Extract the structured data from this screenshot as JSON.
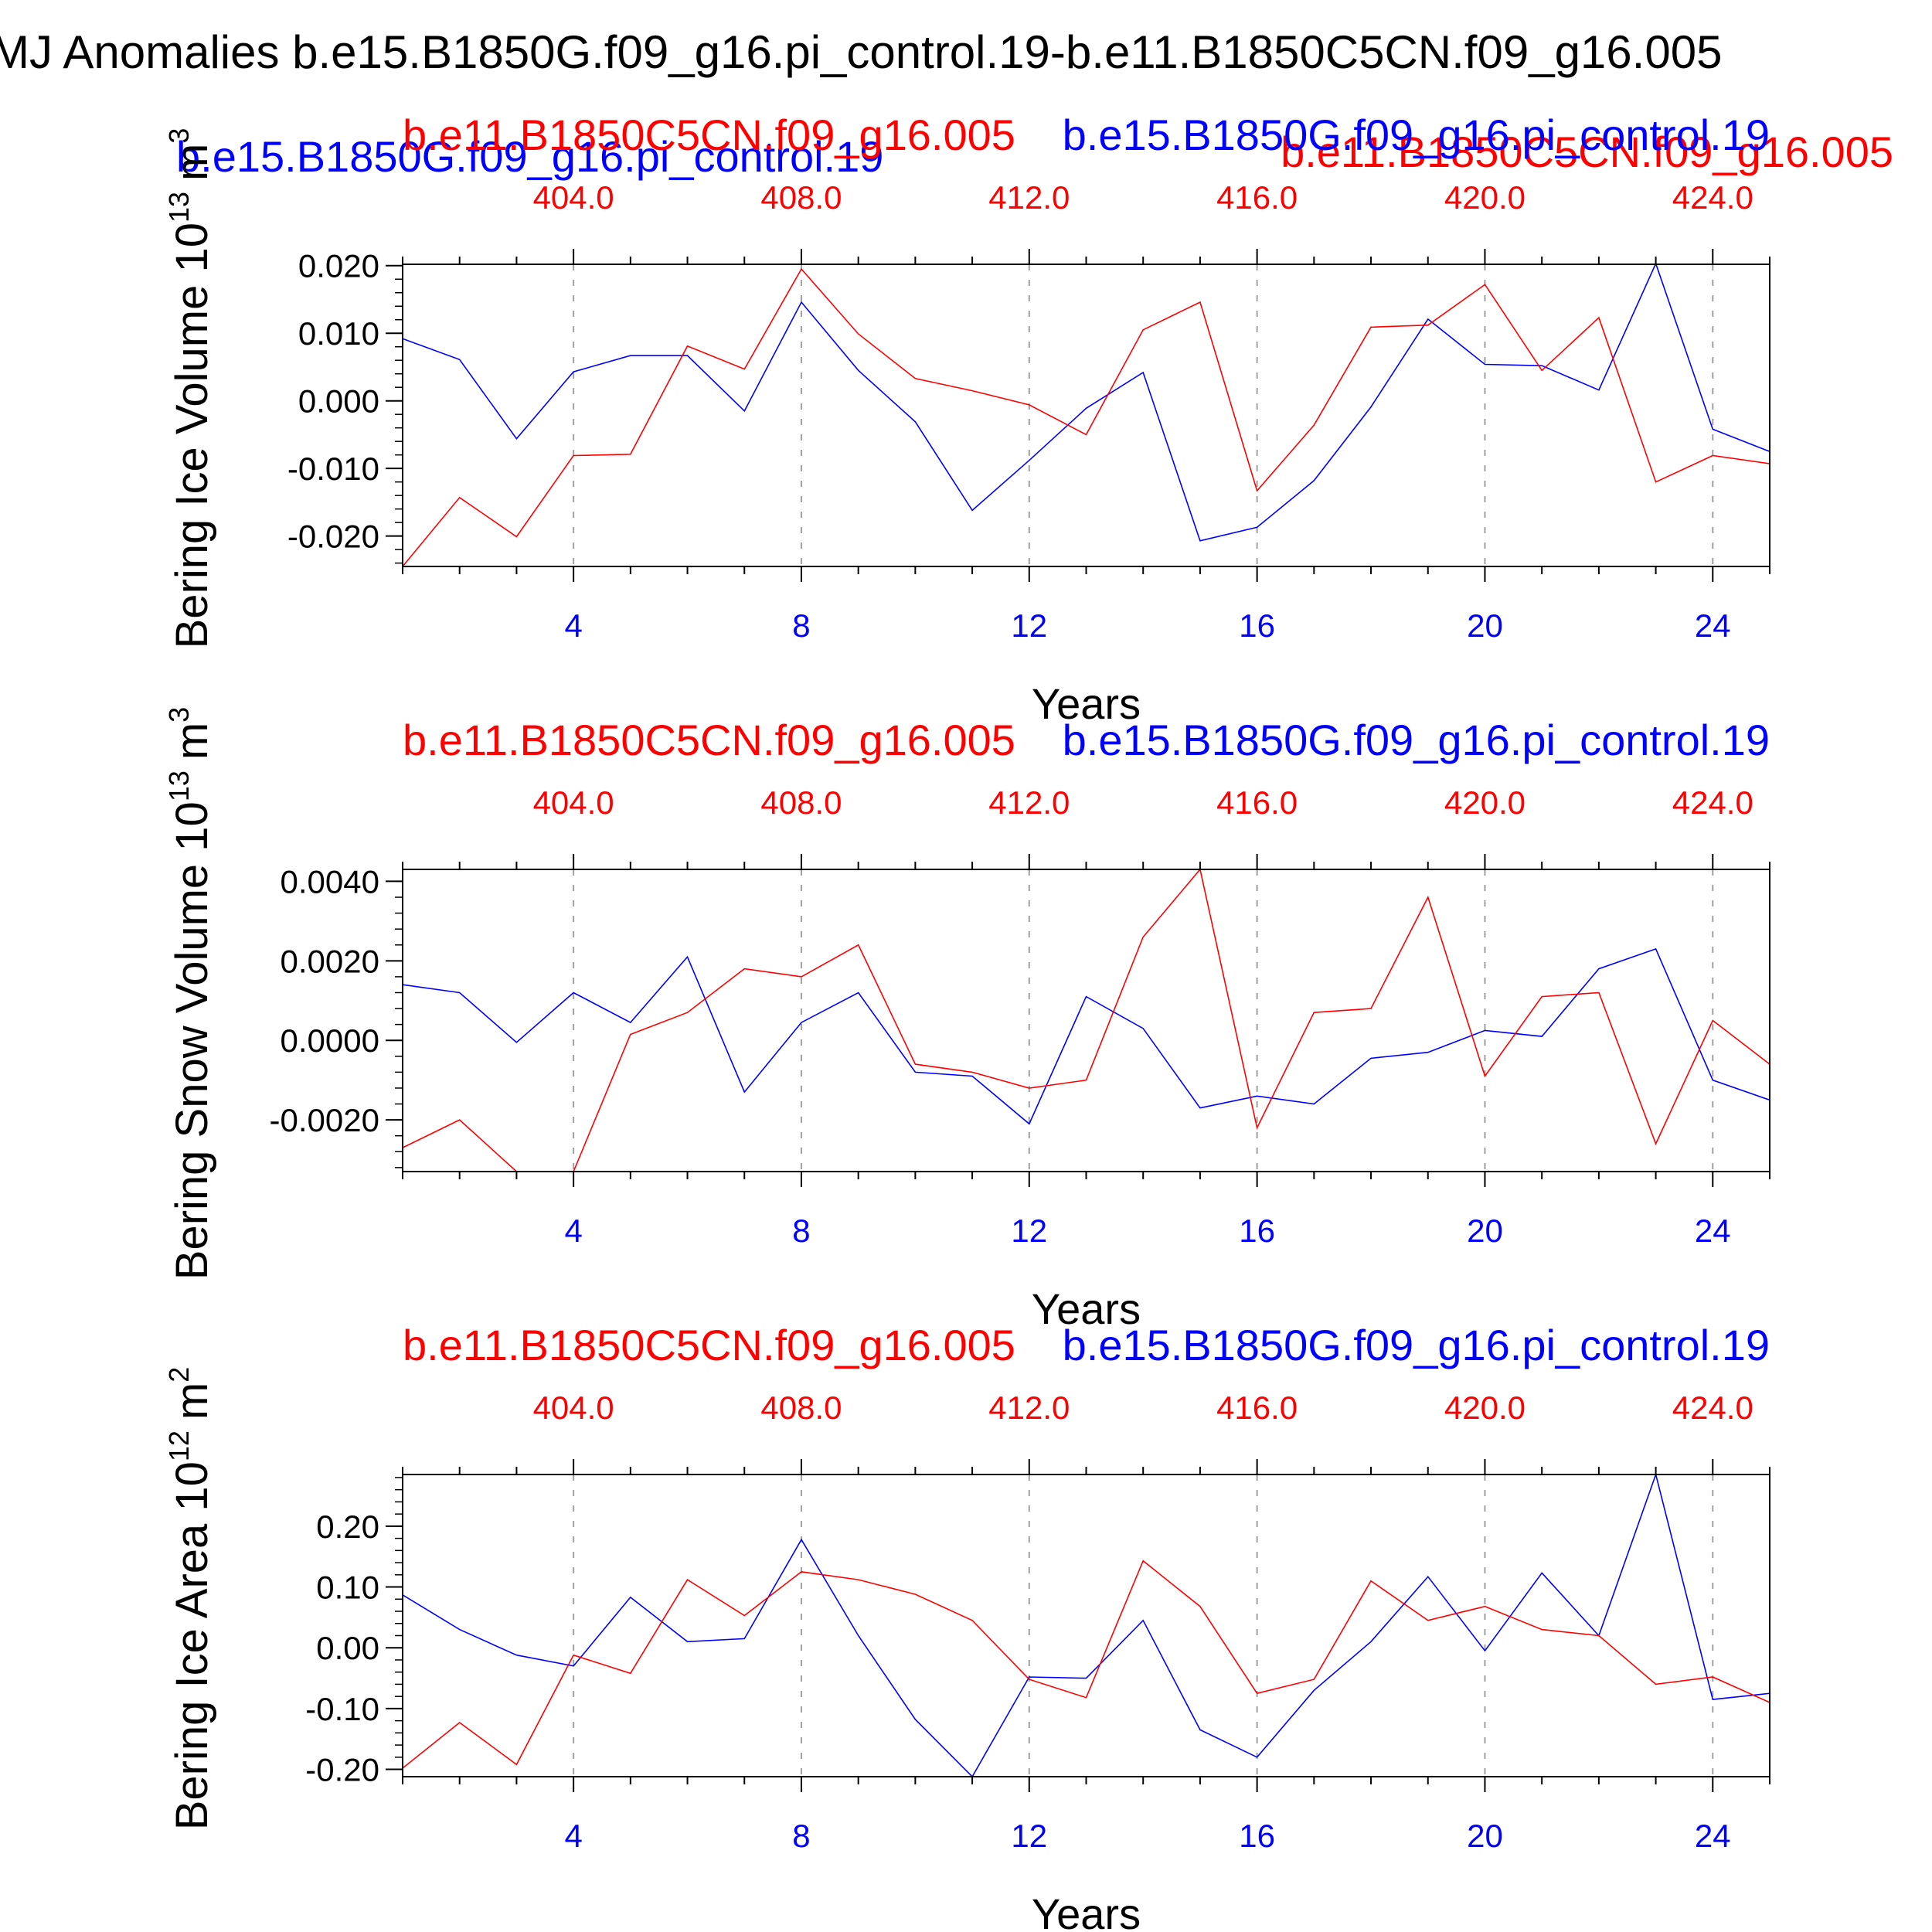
{
  "page_title": "MJ Anomalies b.e15.B1850G.f09_g16.pi_control.19-b.e11.B1850C5CN.f09_g16.005",
  "top_legend": {
    "blue_label": "b.e15.B1850G.f09_g16.pi_control.19",
    "red_label": "b.e11.B1850C5CN.f09_g16.005"
  },
  "colors": {
    "case_a": "#0000ff",
    "case_b": "#ff0000",
    "axis": "#000000",
    "grid": "#a0a0a0"
  },
  "chart_data": [
    {
      "type": "line",
      "name": "ice-volume",
      "ylabel": "Bering Ice Volume 10",
      "ylabel_exp": "13",
      "ylabel_unit": "m",
      "ylabel_unit_exp": "3",
      "xlabel": "Years",
      "ylim": [
        -0.0245,
        0.0202
      ],
      "yticks": [
        -0.02,
        -0.01,
        0.0,
        0.01,
        0.02
      ],
      "ytick_labels": [
        "-0.020",
        "-0.010",
        "0.000",
        "0.010",
        "0.020"
      ],
      "yminor_step": 0.002,
      "xlim": [
        1,
        25
      ],
      "xticks": [
        4,
        8,
        12,
        16,
        20,
        24
      ],
      "xtick_labels": [
        "4",
        "8",
        "12",
        "16",
        "20",
        "24"
      ],
      "top_xtick_labels": [
        "404.0",
        "408.0",
        "412.0",
        "416.0",
        "420.0",
        "424.0"
      ],
      "title_red": "b.e11.B1850C5CN.f09_g16.005",
      "title_blue": "b.e15.B1850G.f09_g16.pi_control.19",
      "x": [
        1,
        2,
        3,
        4,
        5,
        6,
        7,
        8,
        9,
        10,
        11,
        12,
        13,
        14,
        15,
        16,
        17,
        18,
        19,
        20,
        21,
        22,
        23,
        24,
        25
      ],
      "series": [
        {
          "name": "b.e15.B1850G.f09_g16.pi_control.19",
          "color": "#0000ff",
          "values": [
            0.0092,
            0.0061,
            -0.0056,
            0.0043,
            0.0067,
            0.0067,
            -0.0015,
            0.0146,
            0.0045,
            -0.0031,
            -0.0162,
            -0.0088,
            -0.0011,
            0.0042,
            -0.0207,
            -0.0187,
            -0.0118,
            -0.0009,
            0.0121,
            0.0054,
            0.0052,
            0.0016,
            0.0203,
            -0.0042,
            -0.0075
          ]
        },
        {
          "name": "b.e11.B1850C5CN.f09_g16.005",
          "color": "#ff0000",
          "values": [
            -0.0245,
            -0.0143,
            -0.0201,
            -0.0081,
            -0.0079,
            0.0081,
            0.0047,
            0.0195,
            0.0099,
            0.0033,
            0.0015,
            -0.0006,
            -0.005,
            0.0105,
            0.0146,
            -0.0133,
            -0.0036,
            0.0109,
            0.0112,
            0.0172,
            0.0045,
            0.0123,
            -0.012,
            -0.0081,
            -0.0093
          ]
        }
      ]
    },
    {
      "type": "line",
      "name": "snow-volume",
      "ylabel": "Bering Snow Volume 10",
      "ylabel_exp": "13",
      "ylabel_unit": "m",
      "ylabel_unit_exp": "3",
      "xlabel": "Years",
      "ylim": [
        -0.0033,
        0.0043
      ],
      "yticks": [
        -0.002,
        0.0,
        0.002,
        0.004
      ],
      "ytick_labels": [
        "-0.0020",
        "0.0000",
        "0.0020",
        "0.0040"
      ],
      "yminor_step": 0.0004,
      "xlim": [
        1,
        25
      ],
      "xticks": [
        4,
        8,
        12,
        16,
        20,
        24
      ],
      "xtick_labels": [
        "4",
        "8",
        "12",
        "16",
        "20",
        "24"
      ],
      "top_xtick_labels": [
        "404.0",
        "408.0",
        "412.0",
        "416.0",
        "420.0",
        "424.0"
      ],
      "title_red": "b.e11.B1850C5CN.f09_g16.005",
      "title_blue": "b.e15.B1850G.f09_g16.pi_control.19",
      "x": [
        1,
        2,
        3,
        4,
        5,
        6,
        7,
        8,
        9,
        10,
        11,
        12,
        13,
        14,
        15,
        16,
        17,
        18,
        19,
        20,
        21,
        22,
        23,
        24,
        25
      ],
      "series": [
        {
          "name": "b.e15.B1850G.f09_g16.pi_control.19",
          "color": "#0000ff",
          "values": [
            0.0014,
            0.0012,
            -5e-05,
            0.0012,
            0.00045,
            0.0021,
            -0.0013,
            0.00045,
            0.0012,
            -0.0008,
            -0.0009,
            -0.0021,
            0.0011,
            0.0003,
            -0.0017,
            -0.0014,
            -0.0016,
            -0.00045,
            -0.0003,
            0.00025,
            0.0001,
            0.0018,
            0.0023,
            -0.001,
            -0.0015
          ]
        },
        {
          "name": "b.e11.B1850C5CN.f09_g16.005",
          "color": "#ff0000",
          "values": [
            -0.0027,
            -0.002,
            -0.0033,
            -0.0033,
            0.00015,
            0.0007,
            0.0018,
            0.0016,
            0.0024,
            -0.0006,
            -0.0008,
            -0.0012,
            -0.001,
            0.0026,
            0.0043,
            -0.0022,
            0.0007,
            0.0008,
            0.0036,
            -0.0009,
            0.0011,
            0.0012,
            -0.0026,
            0.0005,
            -0.0006
          ]
        }
      ]
    },
    {
      "type": "line",
      "name": "ice-area",
      "ylabel": "Bering Ice Area 10",
      "ylabel_exp": "12",
      "ylabel_unit": "m",
      "ylabel_unit_exp": "2",
      "xlabel": "Years",
      "ylim": [
        -0.212,
        0.285
      ],
      "yticks": [
        -0.2,
        -0.1,
        0.0,
        0.1,
        0.2
      ],
      "ytick_labels": [
        "-0.20",
        "-0.10",
        "0.00",
        "0.10",
        "0.20"
      ],
      "yminor_step": 0.02,
      "xlim": [
        1,
        25
      ],
      "xticks": [
        4,
        8,
        12,
        16,
        20,
        24
      ],
      "xtick_labels": [
        "4",
        "8",
        "12",
        "16",
        "20",
        "24"
      ],
      "top_xtick_labels": [
        "404.0",
        "408.0",
        "412.0",
        "416.0",
        "420.0",
        "424.0"
      ],
      "title_red": "b.e11.B1850C5CN.f09_g16.005",
      "title_blue": "b.e15.B1850G.f09_g16.pi_control.19",
      "x": [
        1,
        2,
        3,
        4,
        5,
        6,
        7,
        8,
        9,
        10,
        11,
        12,
        13,
        14,
        15,
        16,
        17,
        18,
        19,
        20,
        21,
        22,
        23,
        24,
        25
      ],
      "series": [
        {
          "name": "b.e15.B1850G.f09_g16.pi_control.19",
          "color": "#0000ff",
          "values": [
            0.087,
            0.03,
            -0.012,
            -0.03,
            0.083,
            0.01,
            0.015,
            0.178,
            0.02,
            -0.118,
            -0.212,
            -0.048,
            -0.05,
            0.045,
            -0.135,
            -0.18,
            -0.07,
            0.01,
            0.117,
            -0.005,
            0.123,
            0.02,
            0.285,
            -0.085,
            -0.075
          ]
        },
        {
          "name": "b.e11.B1850C5CN.f09_g16.005",
          "color": "#ff0000",
          "values": [
            -0.198,
            -0.123,
            -0.192,
            -0.012,
            -0.042,
            0.112,
            0.053,
            0.125,
            0.112,
            0.088,
            0.045,
            -0.052,
            -0.082,
            0.143,
            0.068,
            -0.075,
            -0.052,
            0.11,
            0.045,
            0.068,
            0.03,
            0.02,
            -0.06,
            -0.048,
            -0.09
          ]
        }
      ]
    }
  ]
}
